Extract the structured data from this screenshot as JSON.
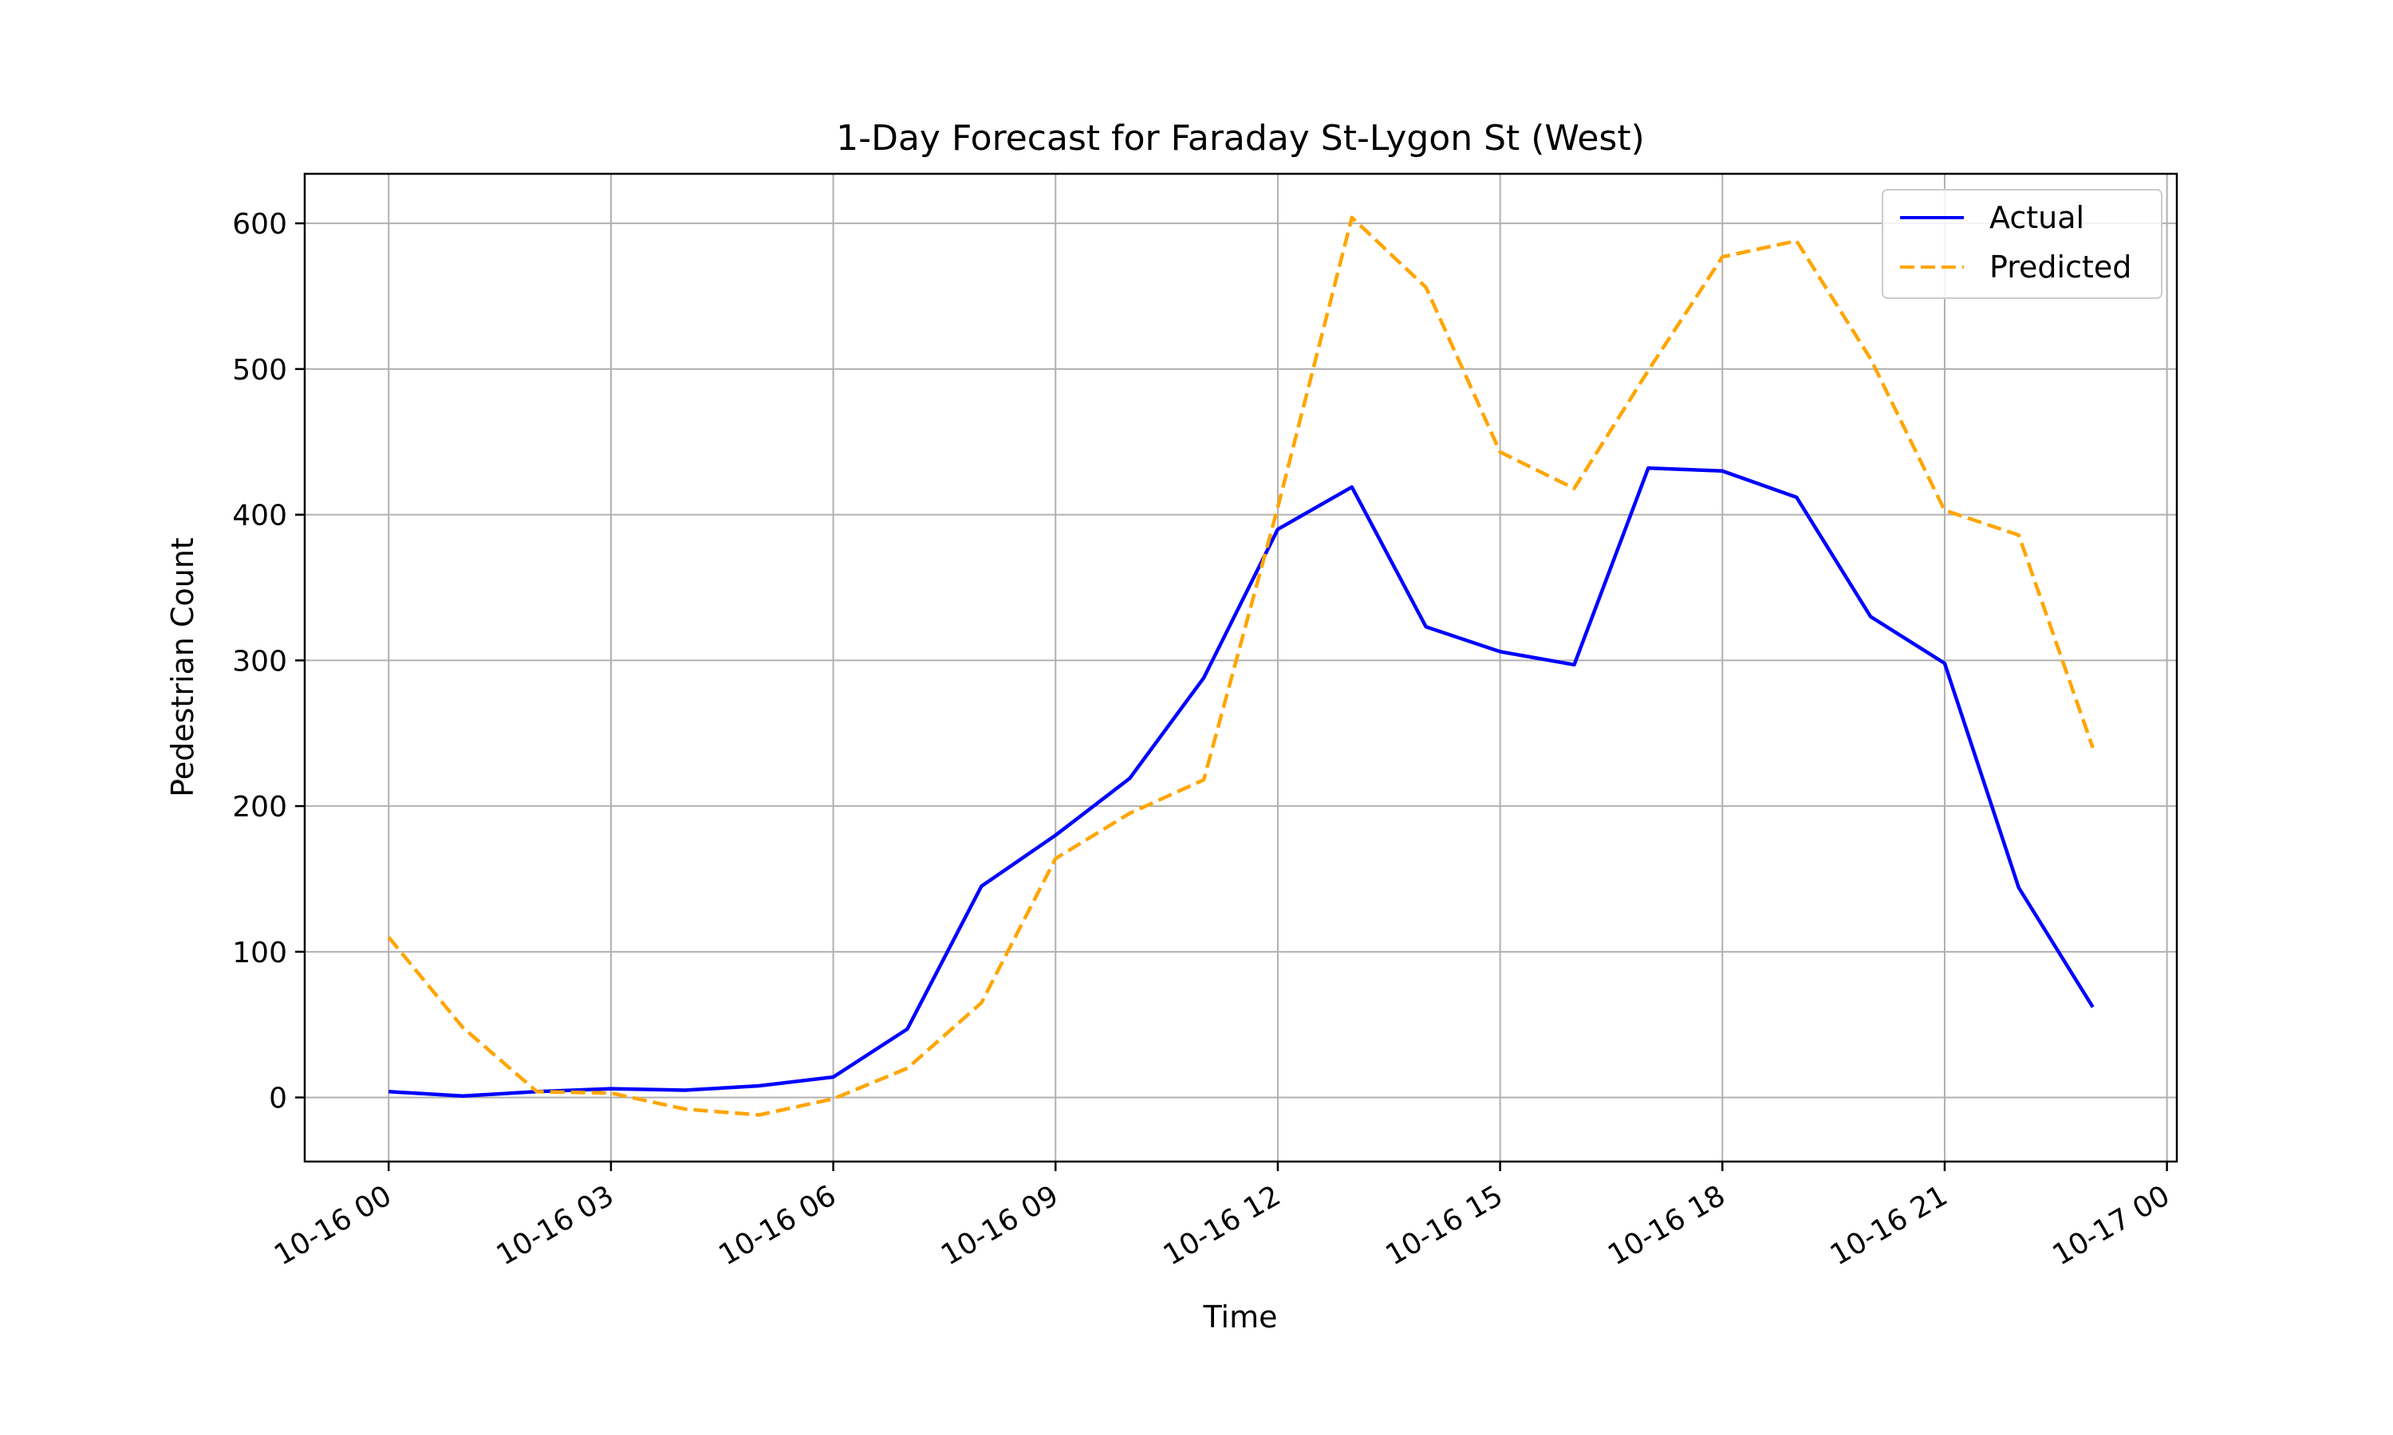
{
  "chart_data": {
    "type": "line",
    "title": "1-Day Forecast for Faraday St-Lygon St (West)",
    "xlabel": "Time",
    "ylabel": "Pedestrian Count",
    "x": [
      "2023-10-16 00:00",
      "2023-10-16 01:00",
      "2023-10-16 02:00",
      "2023-10-16 03:00",
      "2023-10-16 04:00",
      "2023-10-16 05:00",
      "2023-10-16 06:00",
      "2023-10-16 07:00",
      "2023-10-16 08:00",
      "2023-10-16 09:00",
      "2023-10-16 10:00",
      "2023-10-16 11:00",
      "2023-10-16 12:00",
      "2023-10-16 13:00",
      "2023-10-16 14:00",
      "2023-10-16 15:00",
      "2023-10-16 16:00",
      "2023-10-16 17:00",
      "2023-10-16 18:00",
      "2023-10-16 19:00",
      "2023-10-16 20:00",
      "2023-10-16 21:00",
      "2023-10-16 22:00",
      "2023-10-16 23:00"
    ],
    "series": [
      {
        "name": "Actual",
        "color": "#0000ff",
        "style": "solid",
        "values": [
          4,
          1,
          4,
          6,
          5,
          8,
          14,
          47,
          145,
          180,
          219,
          288,
          390,
          419,
          323,
          306,
          297,
          432,
          430,
          412,
          330,
          298,
          144,
          62
        ]
      },
      {
        "name": "Predicted",
        "color": "#ffa500",
        "style": "dashed",
        "values": [
          110,
          48,
          4,
          3,
          -8,
          -12,
          -1,
          20,
          65,
          164,
          195,
          218,
          405,
          604,
          556,
          443,
          418,
          499,
          577,
          588,
          507,
          403,
          386,
          240
        ]
      }
    ],
    "xticks": [
      "10-16 00",
      "10-16 03",
      "10-16 06",
      "10-16 09",
      "10-16 12",
      "10-16 15",
      "10-16 18",
      "10-16 21",
      "10-17 00"
    ],
    "yticks": [
      "0",
      "100",
      "200",
      "300",
      "400",
      "500",
      "600"
    ],
    "ylim": [
      -44,
      634
    ],
    "xlim": [
      "2023-10-15 22:52",
      "2023-10-17 00:08"
    ],
    "grid": true,
    "legend_position": "upper right"
  }
}
